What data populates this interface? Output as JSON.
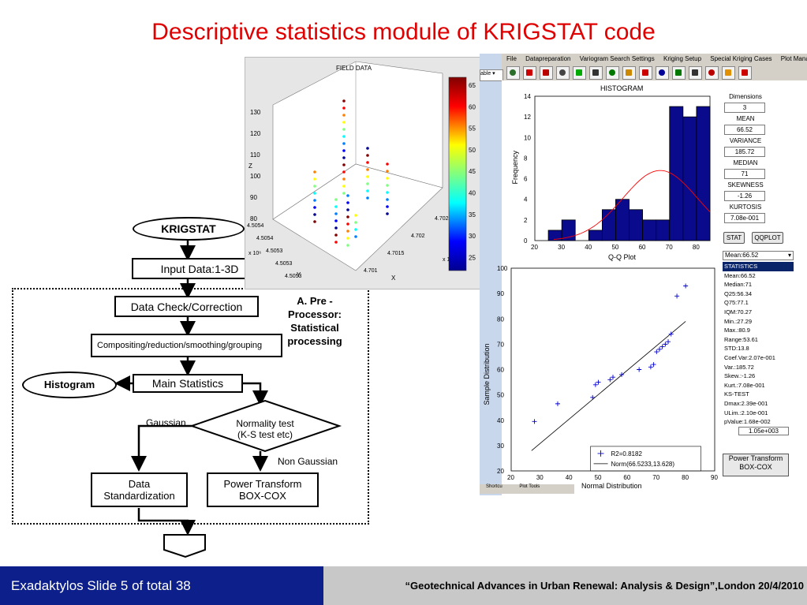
{
  "title": "Descriptive statistics module of KRIGSTAT code",
  "flowchart": {
    "krigstat": "KRIGSTAT",
    "input": "Input Data:1-3D",
    "check": "Data Check/Correction",
    "compositing": "Compositing/reduction/smoothing/grouping",
    "main_stats": "Main Statistics",
    "histogram": "Histogram",
    "normality": "Normality test\n(K-S test etc)",
    "gaussian": "Gaussian",
    "non_gaussian": "Non Gaussian",
    "standardization": "Data Standardization",
    "power_transform": "Power Transform\nBOX-COX",
    "preprocessor": "A. Pre - Processor: Statistical processing"
  },
  "field_data": {
    "title": "FIELD DATA",
    "z_label": "Z",
    "y_label": "Y",
    "x_label": "X",
    "z_ticks": [
      "130",
      "120",
      "110",
      "100",
      "90",
      "80"
    ],
    "y_ticks": [
      "4.5054",
      "4.5054",
      "4.5053",
      "4.5053",
      "4.5053"
    ],
    "y_exp": "x 10⁶",
    "x_ticks": [
      "4.701",
      "4.7015",
      "4.702",
      "4.7025"
    ],
    "x_exp": "x 10",
    "colorbar_ticks": [
      "65",
      "60",
      "55",
      "50",
      "45",
      "40",
      "35",
      "30",
      "25"
    ]
  },
  "app": {
    "menu": [
      "File",
      "Datapreparation",
      "Variogram Search Settings",
      "Kriging Setup",
      "Special Kriging Cases",
      "Plot Mana"
    ],
    "side_combo": "able ▾",
    "dimensions_label": "Dimensions",
    "dimensions": "3",
    "mean_label": "MEAN",
    "mean": "66.52",
    "variance_label": "VARIANCE",
    "variance": "185.72",
    "median_label": "MEDIAN",
    "median": "71",
    "skewness_label": "SKEWNESS",
    "skewness": "-1.26",
    "kurtosis_label": "KURTOSIS",
    "kurtosis": "7.08e-001",
    "stat_button": "STAT",
    "qqplot_button": "QQPLOT",
    "combo_value": "Mean:66.52",
    "stats_list": [
      "STATISTICS",
      "Mean:66.52",
      "Median:71",
      "Q25:56.34",
      "Q75:77.1",
      "IQM:70.27",
      "Min.:27.29",
      "Max.:80.9",
      "Range:53.61",
      "STD:13.8",
      "Coef.Var:2.07e-001",
      "Var.:185.72",
      "Skew.:-1.26",
      "Kurt.:7.08e-001",
      "KS-TEST",
      "Dmax:2.39e-001",
      "ULim.:2.10e-001",
      "pValue:1.68e-002"
    ],
    "hidden_value": "1.05e+003",
    "power_transform_btn": "Power Transform\nBOX-COX",
    "bottom_tabs": [
      "Shortcu",
      "Plot Tools"
    ]
  },
  "chart_data": [
    {
      "type": "bar",
      "title": "HISTOGRAM",
      "xlabel": "Q-Q Plot",
      "ylabel": "Frequency",
      "bin_edges": [
        20,
        25,
        30,
        35,
        40,
        45,
        50,
        55,
        60,
        65,
        70,
        75,
        80,
        85
      ],
      "values": [
        0,
        1,
        2,
        0,
        1,
        3,
        4,
        3,
        2,
        2,
        13,
        12,
        13
      ],
      "xlim": [
        20,
        85
      ],
      "ylim": [
        0,
        14
      ],
      "xticks": [
        20,
        30,
        40,
        50,
        60,
        70,
        80
      ],
      "yticks": [
        0,
        2,
        4,
        6,
        8,
        10,
        12,
        14
      ],
      "normal_fit": {
        "mean": 66.52,
        "std": 13.8,
        "peak": 6.8,
        "color": "#ff0000"
      },
      "bar_color": "#0a0a8c"
    },
    {
      "type": "scatter",
      "xlabel": "Normal Distribution",
      "ylabel": "Sample Distribution",
      "xlim": [
        20,
        90
      ],
      "ylim": [
        20,
        100
      ],
      "xticks": [
        20,
        30,
        40,
        50,
        60,
        70,
        80,
        90
      ],
      "yticks": [
        20,
        30,
        40,
        50,
        60,
        70,
        80,
        90,
        100
      ],
      "series": [
        {
          "name": "R2=0.8182",
          "marker": "+",
          "color": "#0000cc",
          "points": [
            [
              28,
              39.5
            ],
            [
              36,
              46.5
            ],
            [
              48,
              49
            ],
            [
              49,
              54
            ],
            [
              50,
              55
            ],
            [
              54,
              56
            ],
            [
              55,
              57
            ],
            [
              58,
              58
            ],
            [
              64,
              60
            ],
            [
              68,
              61
            ],
            [
              69,
              62
            ],
            [
              70,
              67
            ],
            [
              71,
              68
            ],
            [
              72,
              69
            ],
            [
              73,
              70
            ],
            [
              74,
              71
            ],
            [
              75,
              74
            ],
            [
              77,
              89
            ],
            [
              80,
              93
            ]
          ]
        },
        {
          "name": "Norm(66.5233,13.628)",
          "line": [
            [
              27,
              28
            ],
            [
              80,
              79
            ]
          ],
          "color": "#000000"
        }
      ]
    }
  ],
  "footer": {
    "left": "Exadaktylos Slide 5 of  total 38",
    "right": "“Geotechnical Advances in Urban Renewal: Analysis & Design”,London 20/4/2010"
  }
}
